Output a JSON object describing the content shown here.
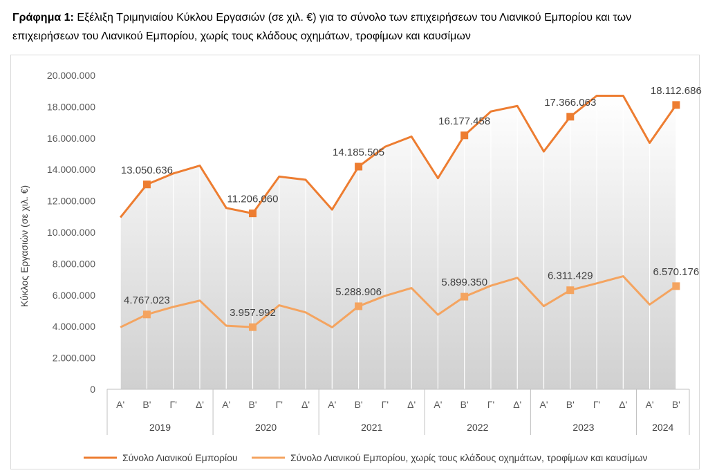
{
  "caption": {
    "lead": "Γράφημα 1:",
    "text": " Εξέλιξη Τριμηνιαίου Κύκλου Εργασιών (σε χιλ. €) για το σύνολο των επιχειρήσεων του Λιανικού Εμπορίου και των επιχειρήσεων του Λιανικού Εμπορίου, χωρίς τους κλάδους οχημάτων, τροφίμων και καυσίμων"
  },
  "chart_data": {
    "type": "line",
    "ylabel": "Κύκλος Εργασιών (σε χιλ. €)",
    "xlabel": "",
    "ylim": [
      0,
      20000000
    ],
    "yticks": [
      0,
      2000000,
      4000000,
      6000000,
      8000000,
      10000000,
      12000000,
      14000000,
      16000000,
      18000000,
      20000000
    ],
    "ytick_labels": [
      "0",
      "2.000.000",
      "4.000.000",
      "6.000.000",
      "8.000.000",
      "10.000.000",
      "12.000.000",
      "14.000.000",
      "16.000.000",
      "18.000.000",
      "20.000.000"
    ],
    "categories": [
      "Α'",
      "Β'",
      "Γ'",
      "Δ'",
      "Α'",
      "Β'",
      "Γ'",
      "Δ'",
      "Α'",
      "Β'",
      "Γ'",
      "Δ'",
      "Α'",
      "Β'",
      "Γ'",
      "Δ'",
      "Α'",
      "Β'",
      "Γ'",
      "Δ'",
      "Α'",
      "Β'"
    ],
    "years": [
      {
        "label": "2019",
        "count": 4
      },
      {
        "label": "2020",
        "count": 4
      },
      {
        "label": "2021",
        "count": 4
      },
      {
        "label": "2022",
        "count": 4
      },
      {
        "label": "2023",
        "count": 4
      },
      {
        "label": "2024",
        "count": 2
      }
    ],
    "grid": "vertical",
    "legend_position": "bottom",
    "series": [
      {
        "name": "Σύνολο Λιανικού Εμπορίου",
        "color": "#ED7D31",
        "values": [
          10950000,
          13050636,
          13750000,
          14250000,
          11550000,
          11206060,
          13550000,
          13350000,
          11450000,
          14185505,
          15450000,
          16100000,
          13450000,
          16177458,
          17700000,
          18050000,
          15150000,
          17366063,
          18700000,
          18700000,
          15700000,
          18112686
        ],
        "labels": [
          {
            "index": 1,
            "text": "13.050.636"
          },
          {
            "index": 5,
            "text": "11.206.060"
          },
          {
            "index": 9,
            "text": "14.185.505"
          },
          {
            "index": 13,
            "text": "16.177.458"
          },
          {
            "index": 17,
            "text": "17.366.063"
          },
          {
            "index": 21,
            "text": "18.112.686"
          }
        ]
      },
      {
        "name": "Σύνολο Λιανικού Εμπορίου, χωρίς τους κλάδους οχημάτων, τροφίμων και καυσίμων",
        "color": "#F4A460",
        "values": [
          3950000,
          4767023,
          5250000,
          5650000,
          4050000,
          3957992,
          5350000,
          4900000,
          3950000,
          5288906,
          5950000,
          6450000,
          4750000,
          5899350,
          6600000,
          7100000,
          5300000,
          6311429,
          6750000,
          7200000,
          5400000,
          6570176
        ],
        "labels": [
          {
            "index": 1,
            "text": "4.767.023"
          },
          {
            "index": 5,
            "text": "3.957.992"
          },
          {
            "index": 9,
            "text": "5.288.906"
          },
          {
            "index": 13,
            "text": "5.899.350"
          },
          {
            "index": 17,
            "text": "6.311.429"
          },
          {
            "index": 21,
            "text": "6.570.176"
          }
        ]
      }
    ]
  }
}
